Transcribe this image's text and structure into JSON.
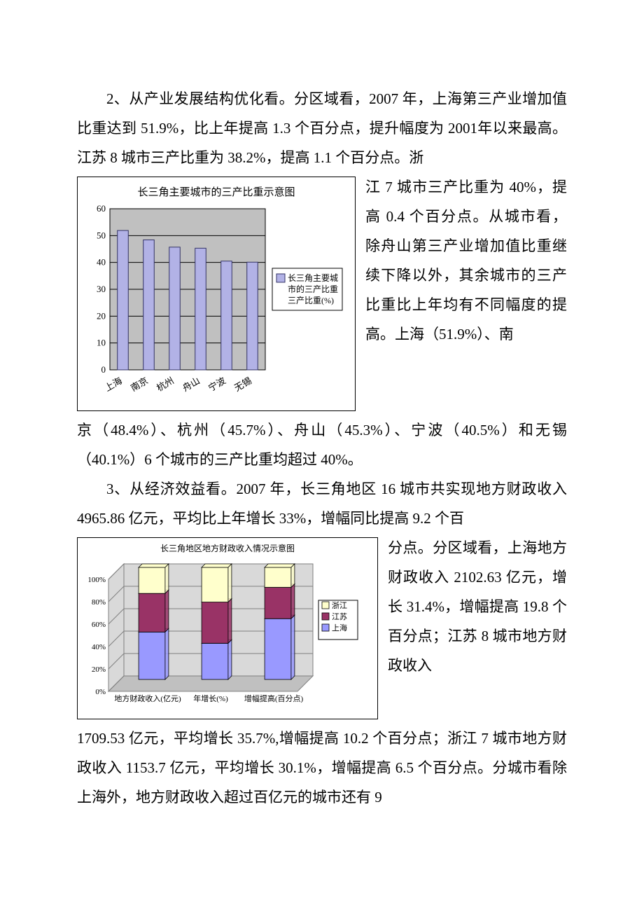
{
  "paragraph2": {
    "lead": "2、从产业发展结构优化看。分区域看，2007 年，上海第三产业增加值比重达到 51.9%，比上年提高 1.3 个百分点，提升幅度为 2001年以来最高。江苏 8 城市三产比重为 38.2%，提高 1.1 个百分点。浙",
    "side": "江 7 城市三产比重为 40%，提高 0.4 个百分点。从城市看，除舟山第三产业增加值比重继续下降以外，其余城市的三产比重比上年均有不同幅度的提高。上海（51.9%）、南",
    "tail": "京（48.4%）、杭州（45.7%）、舟山（45.3%）、宁波（40.5%）和无锡（40.1%）6 个城市的三产比重均超过 40%。"
  },
  "paragraph3": {
    "lead": "3、从经济效益看。2007 年，长三角地区 16 城市共实现地方财政收入 4965.86 亿元，平均比上年增长 33%，增幅同比提高 9.2 个百",
    "side": "分点。分区域看，上海地方财政收入 2102.63 亿元，增长 31.4%，增幅提高 19.8 个百分点；江苏 8 城市地方财政收入",
    "tail": "1709.53 亿元，平均增长 35.7%,增幅提高 10.2 个百分点；浙江 7 城市地方财政收入 1153.7 亿元，平均增长 30.1%，增幅提高 6.5 个百分点。分城市看除上海外，地方财政收入超过百亿元的城市还有 9"
  },
  "chart1": {
    "type": "bar",
    "title": "长三角主要城市的三产比重示意图",
    "legend_label": "长三角主要城市的三产比重三产比重(%)",
    "categories": [
      "上海",
      "南京",
      "杭州",
      "舟山",
      "宁波",
      "无锡"
    ],
    "values": [
      51.9,
      48.4,
      45.7,
      45.3,
      40.5,
      40.1
    ],
    "bar_color": "#b2b2e6",
    "bar_border": "#333366",
    "grid_color": "#000000",
    "background": "#c0c0c0",
    "ylim": [
      0,
      60
    ],
    "ytick_step": 10,
    "legend_bg": "#ffffff",
    "legend_border": "#000000",
    "axis_fontsize": 13,
    "title_fontsize": 15
  },
  "chart2": {
    "type": "stacked-bar-3d",
    "title": "长三角地区地方财政收入情况示意图",
    "categories": [
      "地方财政收入(亿元)",
      "年增长(%)",
      "增幅提高(百分点)"
    ],
    "series": [
      {
        "name": "浙江",
        "color": "#ffffcc",
        "values": [
          1153.7,
          30.1,
          6.5
        ]
      },
      {
        "name": "江苏",
        "color": "#993366",
        "values": [
          1709.53,
          35.7,
          10.2
        ]
      },
      {
        "name": "上海",
        "color": "#9999ff",
        "values": [
          2102.63,
          31.4,
          19.8
        ]
      }
    ],
    "floor_color": "#c0c0c0",
    "wall_color": "#d9d9d9",
    "grid_color": "#808080",
    "ylim_pct": [
      0,
      100
    ],
    "ytick_step_pct": 20,
    "legend_bg": "#ffffff",
    "legend_border": "#000000",
    "axis_fontsize": 11,
    "title_fontsize": 12
  }
}
